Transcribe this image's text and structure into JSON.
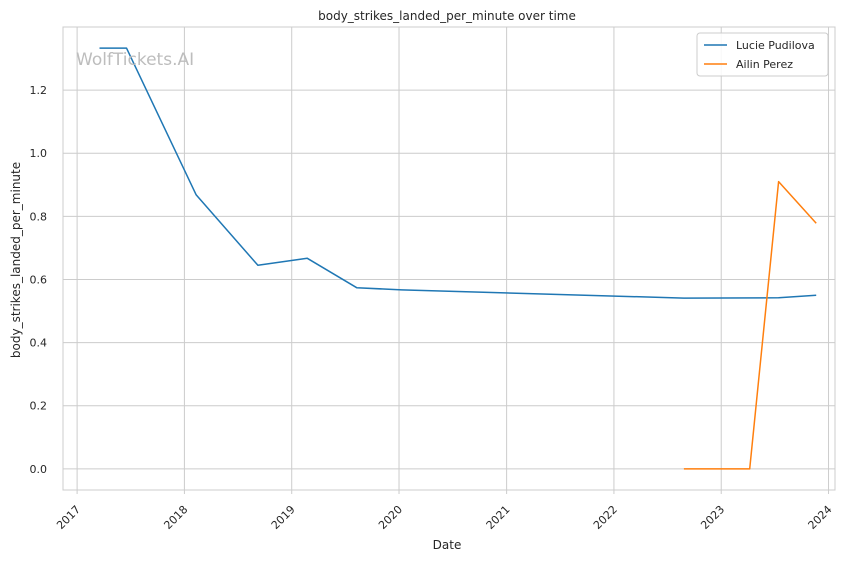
{
  "chart_data": {
    "type": "line",
    "title": "body_strikes_landed_per_minute over time",
    "xlabel": "Date",
    "ylabel": "body_strikes_landed_per_minute",
    "x_ticks": [
      "2017",
      "2018",
      "2019",
      "2020",
      "2021",
      "2022",
      "2023",
      "2024"
    ],
    "y_ticks": [
      "0.0",
      "0.2",
      "0.4",
      "0.6",
      "0.8",
      "1.0",
      "1.2"
    ],
    "xlim": [
      "2016-11-14",
      "2024-01-23"
    ],
    "ylim": [
      -0.067,
      1.4
    ],
    "grid": true,
    "legend_position": "top-right",
    "watermark": "WolfTickets.AI",
    "series": [
      {
        "name": "Lucie Pudilova",
        "color": "#1f77b4",
        "points": [
          {
            "x": "2017-03-18",
            "y": 1.333
          },
          {
            "x": "2017-06-18",
            "y": 1.333
          },
          {
            "x": "2018-02-10",
            "y": 0.868
          },
          {
            "x": "2018-09-08",
            "y": 0.645
          },
          {
            "x": "2019-02-23",
            "y": 0.667
          },
          {
            "x": "2019-08-10",
            "y": 0.574
          },
          {
            "x": "2020-01-10",
            "y": 0.567
          },
          {
            "x": "2022-08-27",
            "y": 0.541
          },
          {
            "x": "2023-07-15",
            "y": 0.542
          },
          {
            "x": "2023-11-20",
            "y": 0.55
          }
        ]
      },
      {
        "name": "Ailin Perez",
        "color": "#ff7f0e",
        "points": [
          {
            "x": "2022-08-27",
            "y": 0.0
          },
          {
            "x": "2023-04-08",
            "y": 0.0
          },
          {
            "x": "2023-07-15",
            "y": 0.91
          },
          {
            "x": "2023-11-20",
            "y": 0.778
          }
        ]
      }
    ]
  }
}
